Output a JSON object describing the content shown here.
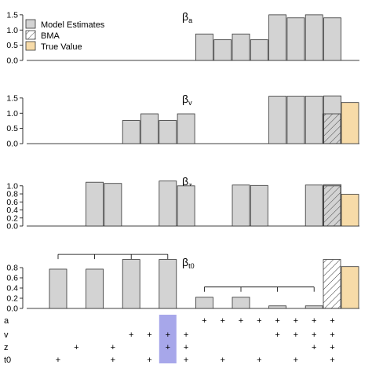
{
  "legend": {
    "items": [
      {
        "label": "Model Estimates",
        "swatch": "model"
      },
      {
        "label": "BMA",
        "swatch": "bma"
      },
      {
        "label": "True Value",
        "swatch": "true"
      }
    ]
  },
  "colors": {
    "model_fill": "#d3d3d3",
    "true_fill": "#f7dba8",
    "highlight": "#a7a7ea",
    "outline": "#333333"
  },
  "chart_data": [
    {
      "type": "bar",
      "title_base": "β",
      "title_sub": "a",
      "ylim": [
        0,
        1.6
      ],
      "yticks": [
        0.0,
        0.5,
        1.0,
        1.5
      ],
      "ytick_labels": [
        "0.0",
        "0.5",
        "1.0",
        "1.5"
      ],
      "model_values": [
        0,
        0,
        0,
        0,
        0,
        0,
        0,
        0,
        0.87,
        0.68,
        0.87,
        0.68,
        1.5,
        1.4,
        1.5,
        1.4
      ],
      "bma": null,
      "true_value": null
    },
    {
      "type": "bar",
      "title_base": "β",
      "title_sub": "v",
      "ylim": [
        0,
        1.6
      ],
      "yticks": [
        0.0,
        0.5,
        1.0,
        1.5
      ],
      "ytick_labels": [
        "0.0",
        "0.5",
        "1.0",
        "1.5"
      ],
      "model_values": [
        0,
        0,
        0,
        0,
        0.76,
        0.98,
        0.76,
        0.98,
        0,
        0,
        0,
        0,
        1.56,
        1.56,
        1.56,
        1.57
      ],
      "bma": 0.98,
      "true_value": 1.35
    },
    {
      "type": "bar",
      "title_base": "β",
      "title_sub": "z",
      "ylim": [
        0,
        1.25
      ],
      "yticks": [
        0.0,
        0.2,
        0.4,
        0.6,
        0.8,
        1.0
      ],
      "ytick_labels": [
        "0.0",
        "0.2",
        "0.4",
        "0.6",
        "0.8",
        "1.0"
      ],
      "model_values": [
        0,
        0,
        1.09,
        1.06,
        0,
        0,
        1.12,
        1.0,
        0,
        0,
        1.02,
        1.01,
        0,
        0,
        1.02,
        1.03
      ],
      "bma": 1.0,
      "true_value": 0.79
    },
    {
      "type": "bar",
      "title_base": "β",
      "title_sub": "t0",
      "ylim": [
        0,
        1.0
      ],
      "yticks": [
        0.0,
        0.2,
        0.4,
        0.6,
        0.8
      ],
      "ytick_labels": [
        "0.0",
        "0.2",
        "0.4",
        "0.6",
        "0.8"
      ],
      "model_values": [
        0.77,
        0,
        0.77,
        0,
        0.96,
        0,
        0.96,
        0,
        0.22,
        0,
        0.22,
        0,
        0.05,
        0,
        0.05,
        0
      ],
      "bma": 0.96,
      "true_value": 0.82,
      "brackets": [
        {
          "from": 1,
          "to": 7,
          "ticks": [
            1,
            3,
            5,
            7
          ],
          "level": 1.06
        },
        {
          "from": 9,
          "to": 15,
          "ticks": [
            9,
            11,
            13,
            15
          ],
          "level": 0.42
        }
      ]
    }
  ],
  "design": {
    "row_labels": [
      "a",
      "v",
      "z",
      "t0"
    ],
    "symbol": "+",
    "highlight_model": 7,
    "models": [
      [
        0,
        0,
        0,
        1
      ],
      [
        0,
        0,
        1,
        0
      ],
      [
        0,
        0,
        0,
        0
      ],
      [
        0,
        0,
        1,
        1
      ],
      [
        0,
        1,
        0,
        0
      ],
      [
        0,
        1,
        0,
        1
      ],
      [
        0,
        1,
        1,
        0
      ],
      [
        0,
        1,
        1,
        1
      ],
      [
        1,
        0,
        0,
        0
      ],
      [
        1,
        0,
        0,
        1
      ],
      [
        1,
        0,
        0,
        0
      ],
      [
        1,
        0,
        0,
        1
      ],
      [
        1,
        1,
        0,
        0
      ],
      [
        1,
        1,
        0,
        1
      ],
      [
        1,
        1,
        1,
        0
      ],
      [
        1,
        1,
        1,
        1
      ]
    ]
  }
}
